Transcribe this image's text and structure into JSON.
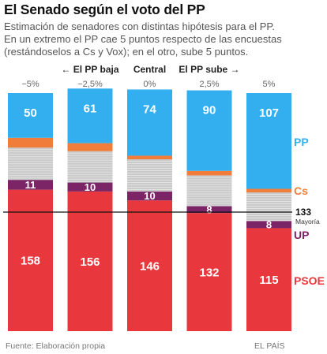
{
  "title": "El Senado según el voto del PP",
  "subtitle": [
    "Estimación de senadores con distintas hipótesis para el PP.",
    "En un extremo el PP cae 5 puntos respecto de las encuestas",
    "(restándoselos a Cs y Vox); en el otro, sube 5 puntos."
  ],
  "source": "Fuente: Elaboración propia",
  "credit": "EL PAÍS",
  "chart_data": {
    "type": "bar",
    "stacked": true,
    "categories": [
      "−5%",
      "−2,5%",
      "0%",
      "2,5%",
      "5%"
    ],
    "category_headers": [
      "",
      "← El PP baja",
      "Central",
      "El PP sube →",
      ""
    ],
    "total_seats": 266,
    "series": [
      {
        "name": "PSOE",
        "color": "#e8383d",
        "values": [
          158,
          156,
          146,
          132,
          115
        ]
      },
      {
        "name": "UP",
        "color": "#7b2566",
        "values": [
          11,
          10,
          10,
          8,
          8
        ]
      },
      {
        "name": "",
        "color": "#c9c9c9",
        "values": [
          36,
          35,
          36,
          34,
          32
        ]
      },
      {
        "name": "Cs",
        "color": "#f07d3a",
        "values": [
          11,
          9,
          4,
          5,
          4
        ]
      },
      {
        "name": "PP",
        "color": "#33aff0",
        "values": [
          50,
          61,
          74,
          90,
          107
        ]
      }
    ],
    "data_labels": {
      "PSOE": [
        "158",
        "156",
        "146",
        "132",
        "115"
      ],
      "UP": [
        "11",
        "10",
        "10",
        "8",
        "8"
      ],
      "PP": [
        "50",
        "61",
        "74",
        "90",
        "107"
      ]
    },
    "majority_line": {
      "value": 133,
      "label": "133",
      "sublabel": "Mayoría"
    },
    "legend": [
      "PP",
      "Cs",
      "UP",
      "PSOE"
    ],
    "colors": {
      "PP": "#33aff0",
      "Cs": "#f07d3a",
      "UP": "#7b2566",
      "PSOE": "#e8383d",
      "others": "#c9c9c9"
    }
  }
}
